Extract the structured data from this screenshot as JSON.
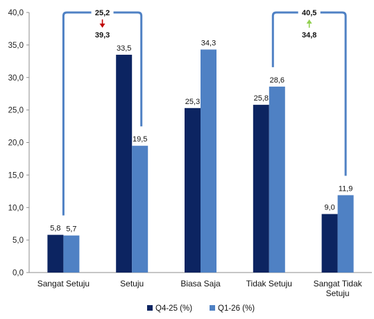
{
  "chart_data": {
    "type": "bar",
    "categories": [
      "Sangat Setuju",
      "Setuju",
      "Biasa Saja",
      "Tidak Setuju",
      "Sangat Tidak Setuju"
    ],
    "series": [
      {
        "name": "Q4-25 (%)",
        "values": [
          5.8,
          33.5,
          25.3,
          25.8,
          9.0
        ],
        "color": "#0c2461"
      },
      {
        "name": "Q1-26 (%)",
        "values": [
          5.7,
          19.5,
          34.3,
          28.6,
          11.9
        ],
        "color": "#4f81c4"
      }
    ],
    "value_labels": [
      [
        "5,8",
        "33,5",
        "25,3",
        "25,8",
        "9,0"
      ],
      [
        "5,7",
        "19,5",
        "34,3",
        "28,6",
        "11,9"
      ]
    ],
    "ylim": [
      0,
      40
    ],
    "yticks": [
      0,
      5,
      10,
      15,
      20,
      25,
      30,
      35,
      40
    ],
    "ytick_labels": [
      "0,0",
      "5,0",
      "10,0",
      "15,0",
      "20,0",
      "25,0",
      "30,0",
      "35,0",
      "40,0"
    ],
    "legend_position": "bottom-center",
    "grid": false,
    "annotations": [
      {
        "top_value": "25,2",
        "bottom_value": "39,3",
        "arrow": "down",
        "arrow_color": "#c00000",
        "connects": [
          "Sangat Setuju",
          "Setuju"
        ]
      },
      {
        "top_value": "40,5",
        "bottom_value": "34,8",
        "arrow": "up",
        "arrow_color": "#92d050",
        "connects": [
          "Tidak Setuju",
          "Sangat Tidak Setuju"
        ]
      }
    ],
    "bracket_color": "#4f81c4"
  }
}
